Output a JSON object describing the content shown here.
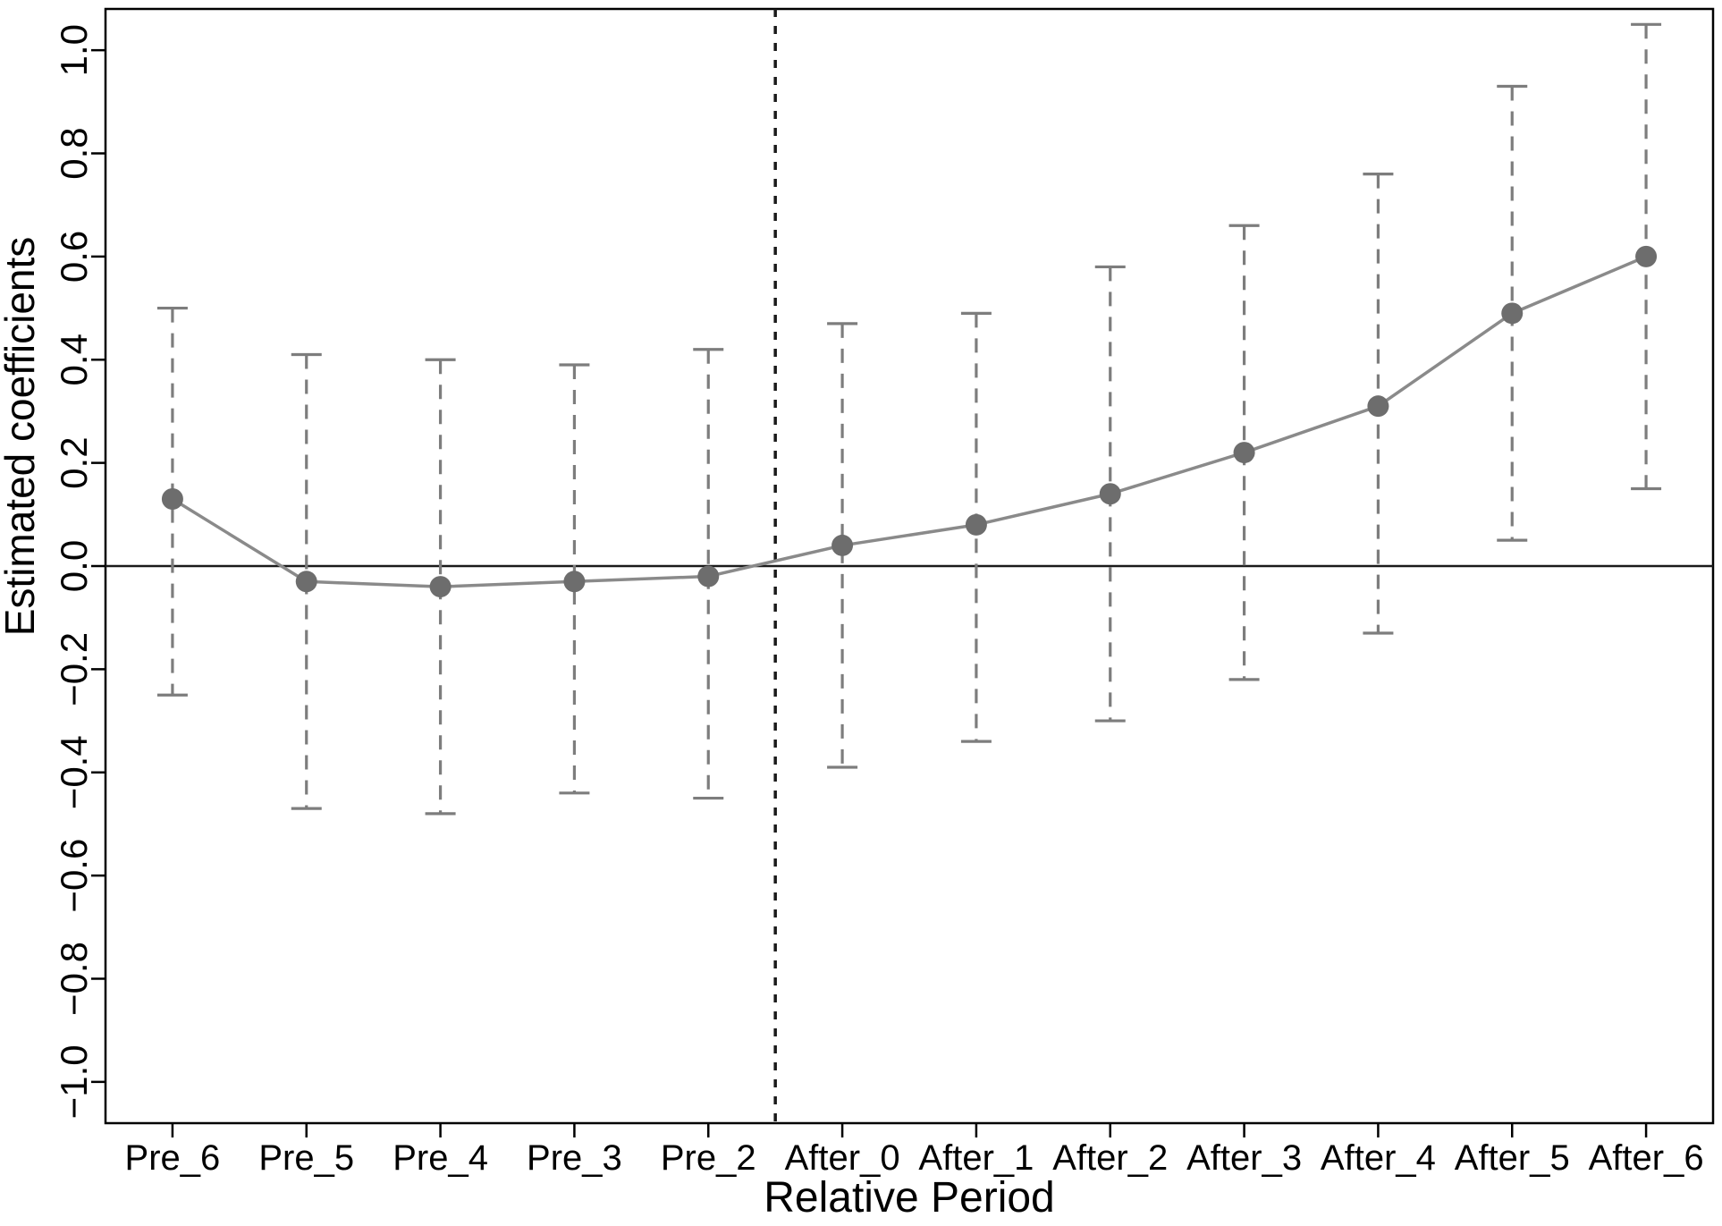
{
  "chart_data": {
    "type": "line",
    "title": "",
    "xlabel": "Relative Period",
    "ylabel": "Estimated coefficients",
    "categories": [
      "Pre_6",
      "Pre_5",
      "Pre_4",
      "Pre_3",
      "Pre_2",
      "After_0",
      "After_1",
      "After_2",
      "After_3",
      "After_4",
      "After_5",
      "After_6"
    ],
    "series": [
      {
        "name": "Estimated coefficients",
        "values": [
          0.13,
          -0.03,
          -0.04,
          -0.03,
          -0.02,
          0.04,
          0.08,
          0.14,
          0.22,
          0.31,
          0.49,
          0.6
        ],
        "ci_lower": [
          -0.25,
          -0.47,
          -0.48,
          -0.44,
          -0.45,
          -0.39,
          -0.34,
          -0.3,
          -0.22,
          -0.13,
          0.05,
          0.15
        ],
        "ci_upper": [
          0.5,
          0.41,
          0.4,
          0.39,
          0.42,
          0.47,
          0.49,
          0.58,
          0.66,
          0.76,
          0.93,
          1.05
        ]
      }
    ],
    "ylim": [
      -1.08,
      1.08
    ],
    "yticks": [
      -1.0,
      -0.8,
      -0.6,
      -0.4,
      -0.2,
      0.0,
      0.2,
      0.4,
      0.6,
      0.8,
      1.0
    ],
    "grid": "off",
    "legend": "none",
    "reference": {
      "zero_line_y": 0.0,
      "vertical_dashed_line_between_index": 4.5
    },
    "colors": {
      "point": "#6d6d6d",
      "line": "#8a8a8a",
      "error_bar": "#7d7d7d",
      "axis": "#000000",
      "reference_line": "#1a1a1a",
      "background": "#ffffff"
    }
  }
}
